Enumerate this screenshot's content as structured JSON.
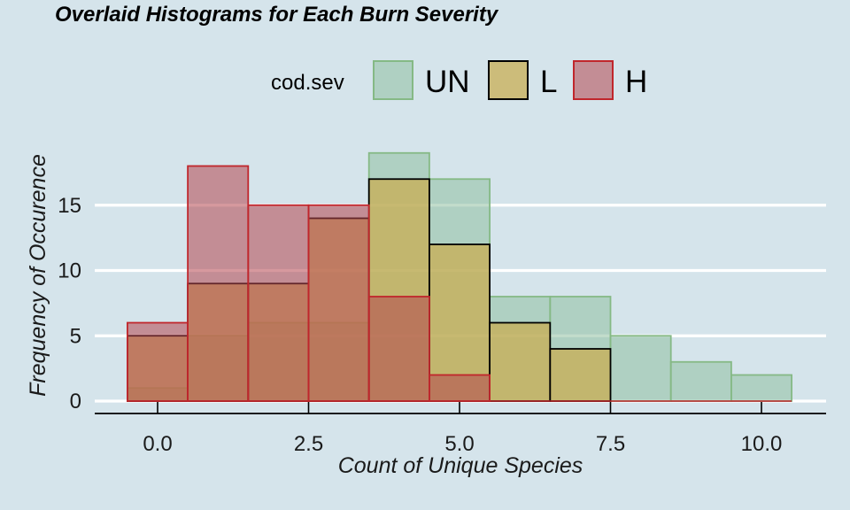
{
  "chart_data": {
    "type": "bar",
    "title": "Overlaid Histograms for Each Burn Severity",
    "xlabel": "Count of Unique Species",
    "ylabel": "Frequency of Occurence",
    "xlim": [
      -0.5,
      10.5
    ],
    "ylim": [
      0,
      19
    ],
    "xticks": [
      0,
      2.5,
      5,
      7.5,
      10
    ],
    "xtick_labels": [
      "0.0",
      "2.5",
      "5.0",
      "7.5",
      "10.0"
    ],
    "yticks": [
      0,
      5,
      10,
      15
    ],
    "ytick_labels": [
      "0",
      "5",
      "10",
      "15"
    ],
    "grid": "horizontal major lines only",
    "bin_width": 1,
    "legend": {
      "title": "cod.sev",
      "position": "top"
    },
    "series": [
      {
        "name": "UN",
        "fill": "#8fc0a0",
        "fill_opacity": 0.55,
        "stroke": "#85b985",
        "bins": [
          {
            "x": 0,
            "count": 1
          },
          {
            "x": 1,
            "count": 5
          },
          {
            "x": 2,
            "count": 6
          },
          {
            "x": 3,
            "count": 6
          },
          {
            "x": 4,
            "count": 19
          },
          {
            "x": 5,
            "count": 17
          },
          {
            "x": 6,
            "count": 8
          },
          {
            "x": 7,
            "count": 8
          },
          {
            "x": 8,
            "count": 5
          },
          {
            "x": 9,
            "count": 3
          },
          {
            "x": 10,
            "count": 2
          }
        ]
      },
      {
        "name": "L",
        "fill": "#c9ac4e",
        "fill_opacity": 0.72,
        "stroke": "#000000",
        "bins": [
          {
            "x": 0,
            "count": 5
          },
          {
            "x": 1,
            "count": 9
          },
          {
            "x": 2,
            "count": 9
          },
          {
            "x": 3,
            "count": 14
          },
          {
            "x": 4,
            "count": 17
          },
          {
            "x": 5,
            "count": 12
          },
          {
            "x": 6,
            "count": 6
          },
          {
            "x": 7,
            "count": 4
          }
        ]
      },
      {
        "name": "H",
        "fill": "#b5454f",
        "fill_opacity": 0.55,
        "stroke": "#c0262c",
        "bins": [
          {
            "x": 0,
            "count": 6
          },
          {
            "x": 1,
            "count": 18
          },
          {
            "x": 2,
            "count": 15
          },
          {
            "x": 3,
            "count": 15
          },
          {
            "x": 4,
            "count": 8
          },
          {
            "x": 5,
            "count": 2
          },
          {
            "x": 6,
            "count": 0
          },
          {
            "x": 7,
            "count": 0
          },
          {
            "x": 8,
            "count": 0
          },
          {
            "x": 9,
            "count": 0
          },
          {
            "x": 10,
            "count": 0
          }
        ]
      }
    ]
  }
}
